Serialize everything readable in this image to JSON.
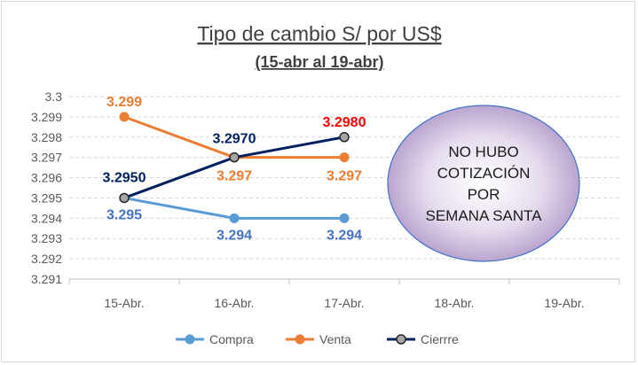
{
  "chart_data": {
    "type": "line",
    "title": "Tipo de cambio S/ por US$",
    "subtitle": "(15-abr al 19-abr)",
    "categories": [
      "15-Abr.",
      "16-Abr.",
      "17-Abr.",
      "18-Abr.",
      "19-Abr."
    ],
    "ylim": [
      3.291,
      3.3
    ],
    "yticks": [
      "3.291",
      "3.292",
      "3.293",
      "3.294",
      "3.295",
      "3.296",
      "3.297",
      "3.298",
      "3.299",
      "3.3"
    ],
    "grid": true,
    "legend_position": "bottom",
    "series": [
      {
        "name": "Compra",
        "color": "#5b9bd5",
        "values": [
          3.295,
          3.294,
          3.294,
          null,
          null
        ],
        "labels": [
          "3.295",
          "3.294",
          "3.294",
          "",
          ""
        ],
        "label_color": "#4472c4"
      },
      {
        "name": "Venta",
        "color": "#ed7d31",
        "values": [
          3.299,
          3.297,
          3.297,
          null,
          null
        ],
        "labels": [
          "3.299",
          "3.297",
          "3.297",
          "",
          ""
        ],
        "label_color": "#ed7d31"
      },
      {
        "name": "Cierrre",
        "color": "#002060",
        "marker_fill": "#a5a5a5",
        "values": [
          3.295,
          3.297,
          3.298,
          null,
          null
        ],
        "labels": [
          "3.2950",
          "3.2970",
          "3.2980",
          "",
          ""
        ],
        "label_colors": [
          "#002060",
          "#002060",
          "#ff0000"
        ]
      }
    ],
    "annotation": {
      "lines": [
        "NO HUBO",
        "COTIZACIÓN",
        "POR",
        "SEMANA SANTA"
      ]
    }
  }
}
